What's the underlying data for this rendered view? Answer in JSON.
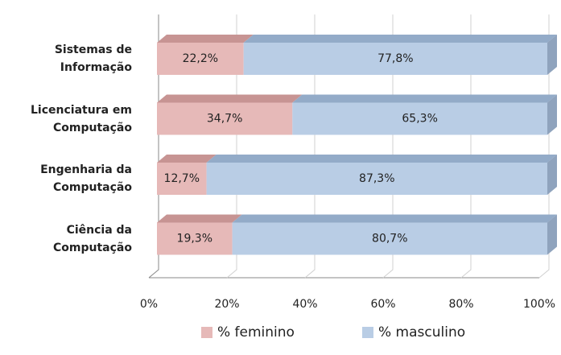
{
  "chart_data": {
    "type": "bar3d_stacked_horizontal",
    "categories": [
      "Sistemas de Informação",
      "Licenciatura em Computação",
      "Engenharia da Computação",
      "Ciência da Computação"
    ],
    "series": [
      {
        "name": "% feminino",
        "color": "#e6b9b8",
        "top_color": "#c79493",
        "values": [
          22.2,
          34.7,
          12.7,
          19.3
        ],
        "value_labels": [
          "22,2%",
          "34,7%",
          "12,7%",
          "19,3%"
        ]
      },
      {
        "name": "% masculino",
        "color": "#b9cde5",
        "top_color": "#93abc8",
        "values": [
          77.8,
          65.3,
          87.3,
          80.7
        ],
        "value_labels": [
          "77,8%",
          "65,3%",
          "87,3%",
          "80,7%"
        ]
      }
    ],
    "xlim": [
      0,
      100
    ],
    "xticks": [
      {
        "value": 0,
        "label": "0%"
      },
      {
        "value": 20,
        "label": "20%"
      },
      {
        "value": 40,
        "label": "40%"
      },
      {
        "value": 60,
        "label": "60%"
      },
      {
        "value": 80,
        "label": "80%"
      },
      {
        "value": 100,
        "label": "100%"
      }
    ],
    "grid": true,
    "legend": "bottom"
  }
}
